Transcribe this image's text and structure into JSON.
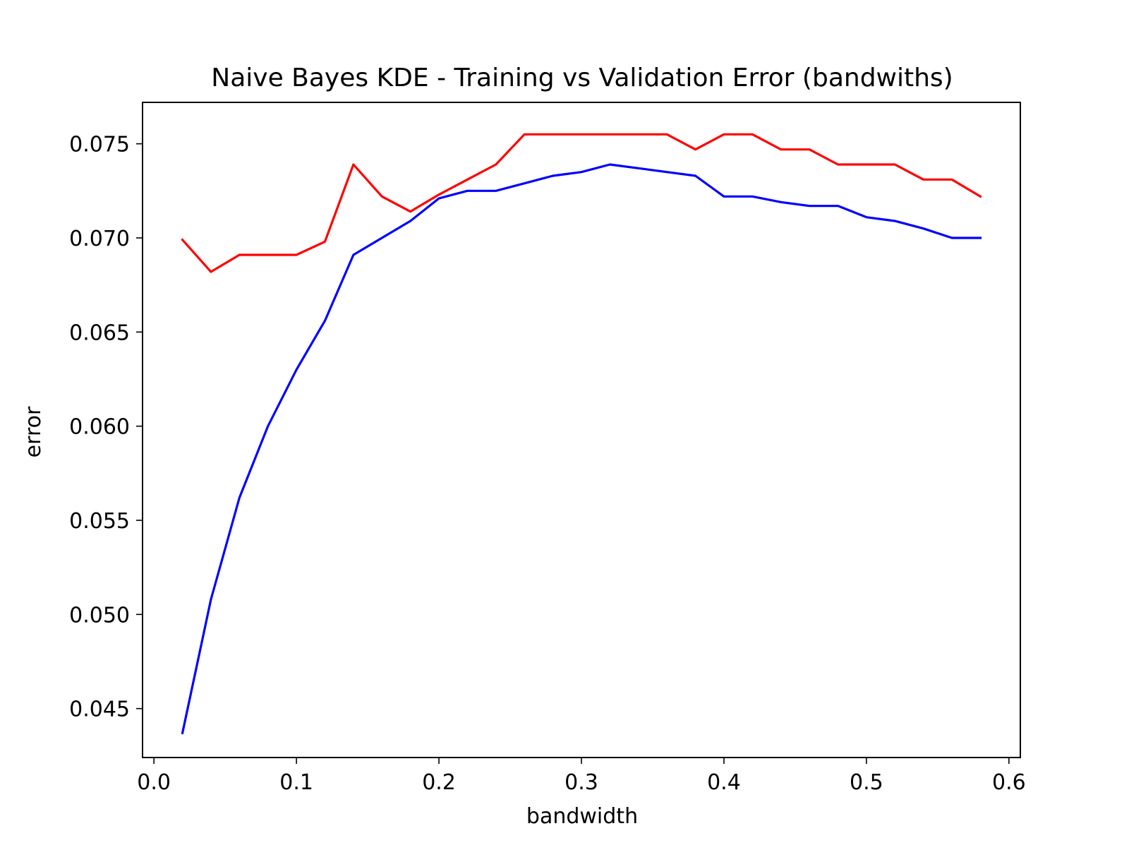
{
  "chart_data": {
    "type": "line",
    "title": "Naive Bayes KDE - Training vs Validation Error (bandwiths)",
    "xlabel": "bandwidth",
    "ylabel": "error",
    "xlim": [
      -0.008,
      0.608
    ],
    "ylim": [
      0.0424,
      0.0772
    ],
    "xticks": [
      0.0,
      0.1,
      0.2,
      0.3,
      0.4,
      0.5,
      0.6
    ],
    "xtick_labels": [
      "0.0",
      "0.1",
      "0.2",
      "0.3",
      "0.4",
      "0.5",
      "0.6"
    ],
    "yticks": [
      0.045,
      0.05,
      0.055,
      0.06,
      0.065,
      0.07,
      0.075
    ],
    "ytick_labels": [
      "0.045",
      "0.050",
      "0.055",
      "0.060",
      "0.065",
      "0.070",
      "0.075"
    ],
    "grid": false,
    "legend": null,
    "x": [
      0.02,
      0.04,
      0.06,
      0.08,
      0.1,
      0.12,
      0.14,
      0.16,
      0.18,
      0.2,
      0.22,
      0.24,
      0.26,
      0.28,
      0.3,
      0.32,
      0.34,
      0.36,
      0.38,
      0.4,
      0.42,
      0.44,
      0.46,
      0.48,
      0.5,
      0.52,
      0.54,
      0.56,
      0.58
    ],
    "series": [
      {
        "color": "#ff0000",
        "values": [
          0.0699,
          0.0682,
          0.0691,
          0.0691,
          0.0691,
          0.0698,
          0.0739,
          0.0722,
          0.0714,
          0.0723,
          0.0731,
          0.0739,
          0.0755,
          0.0755,
          0.0755,
          0.0755,
          0.0755,
          0.0755,
          0.0747,
          0.0755,
          0.0755,
          0.0747,
          0.0747,
          0.0739,
          0.0739,
          0.0739,
          0.0731,
          0.0731,
          0.0722
        ]
      },
      {
        "color": "#0000ff",
        "values": [
          0.0437,
          0.0508,
          0.0562,
          0.06,
          0.063,
          0.0656,
          0.0691,
          0.07,
          0.0709,
          0.0721,
          0.0725,
          0.0725,
          0.0729,
          0.0733,
          0.0735,
          0.0739,
          0.0737,
          0.0735,
          0.0733,
          0.0722,
          0.0722,
          0.0719,
          0.0717,
          0.0717,
          0.0711,
          0.0709,
          0.0705,
          0.07,
          0.07
        ]
      }
    ]
  }
}
